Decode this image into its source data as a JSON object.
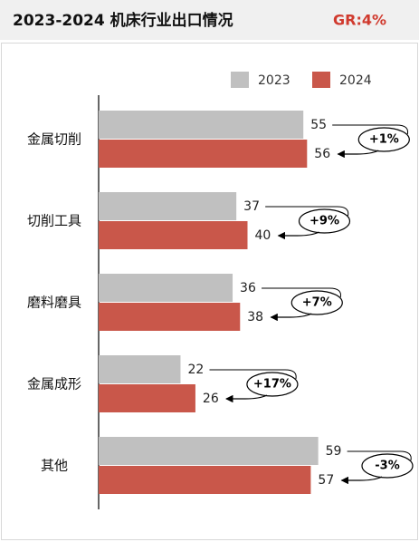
{
  "chart_data": {
    "type": "bar",
    "orientation": "horizontal",
    "title": "2023-2024 机床行业出口情况",
    "subtitle": "GR:4%",
    "categories": [
      "金属切削",
      "切削工具",
      "磨料磨具",
      "金属成形",
      "其他"
    ],
    "series": [
      {
        "name": "2023",
        "color": "#c0c0c0",
        "values": [
          55,
          37,
          36,
          22,
          59
        ]
      },
      {
        "name": "2024",
        "color": "#c9574a",
        "values": [
          56,
          40,
          38,
          26,
          57
        ]
      }
    ],
    "annotations": [
      "+1%",
      "+9%",
      "+7%",
      "+17%",
      "-3%"
    ],
    "xlim": [
      0,
      80
    ]
  }
}
